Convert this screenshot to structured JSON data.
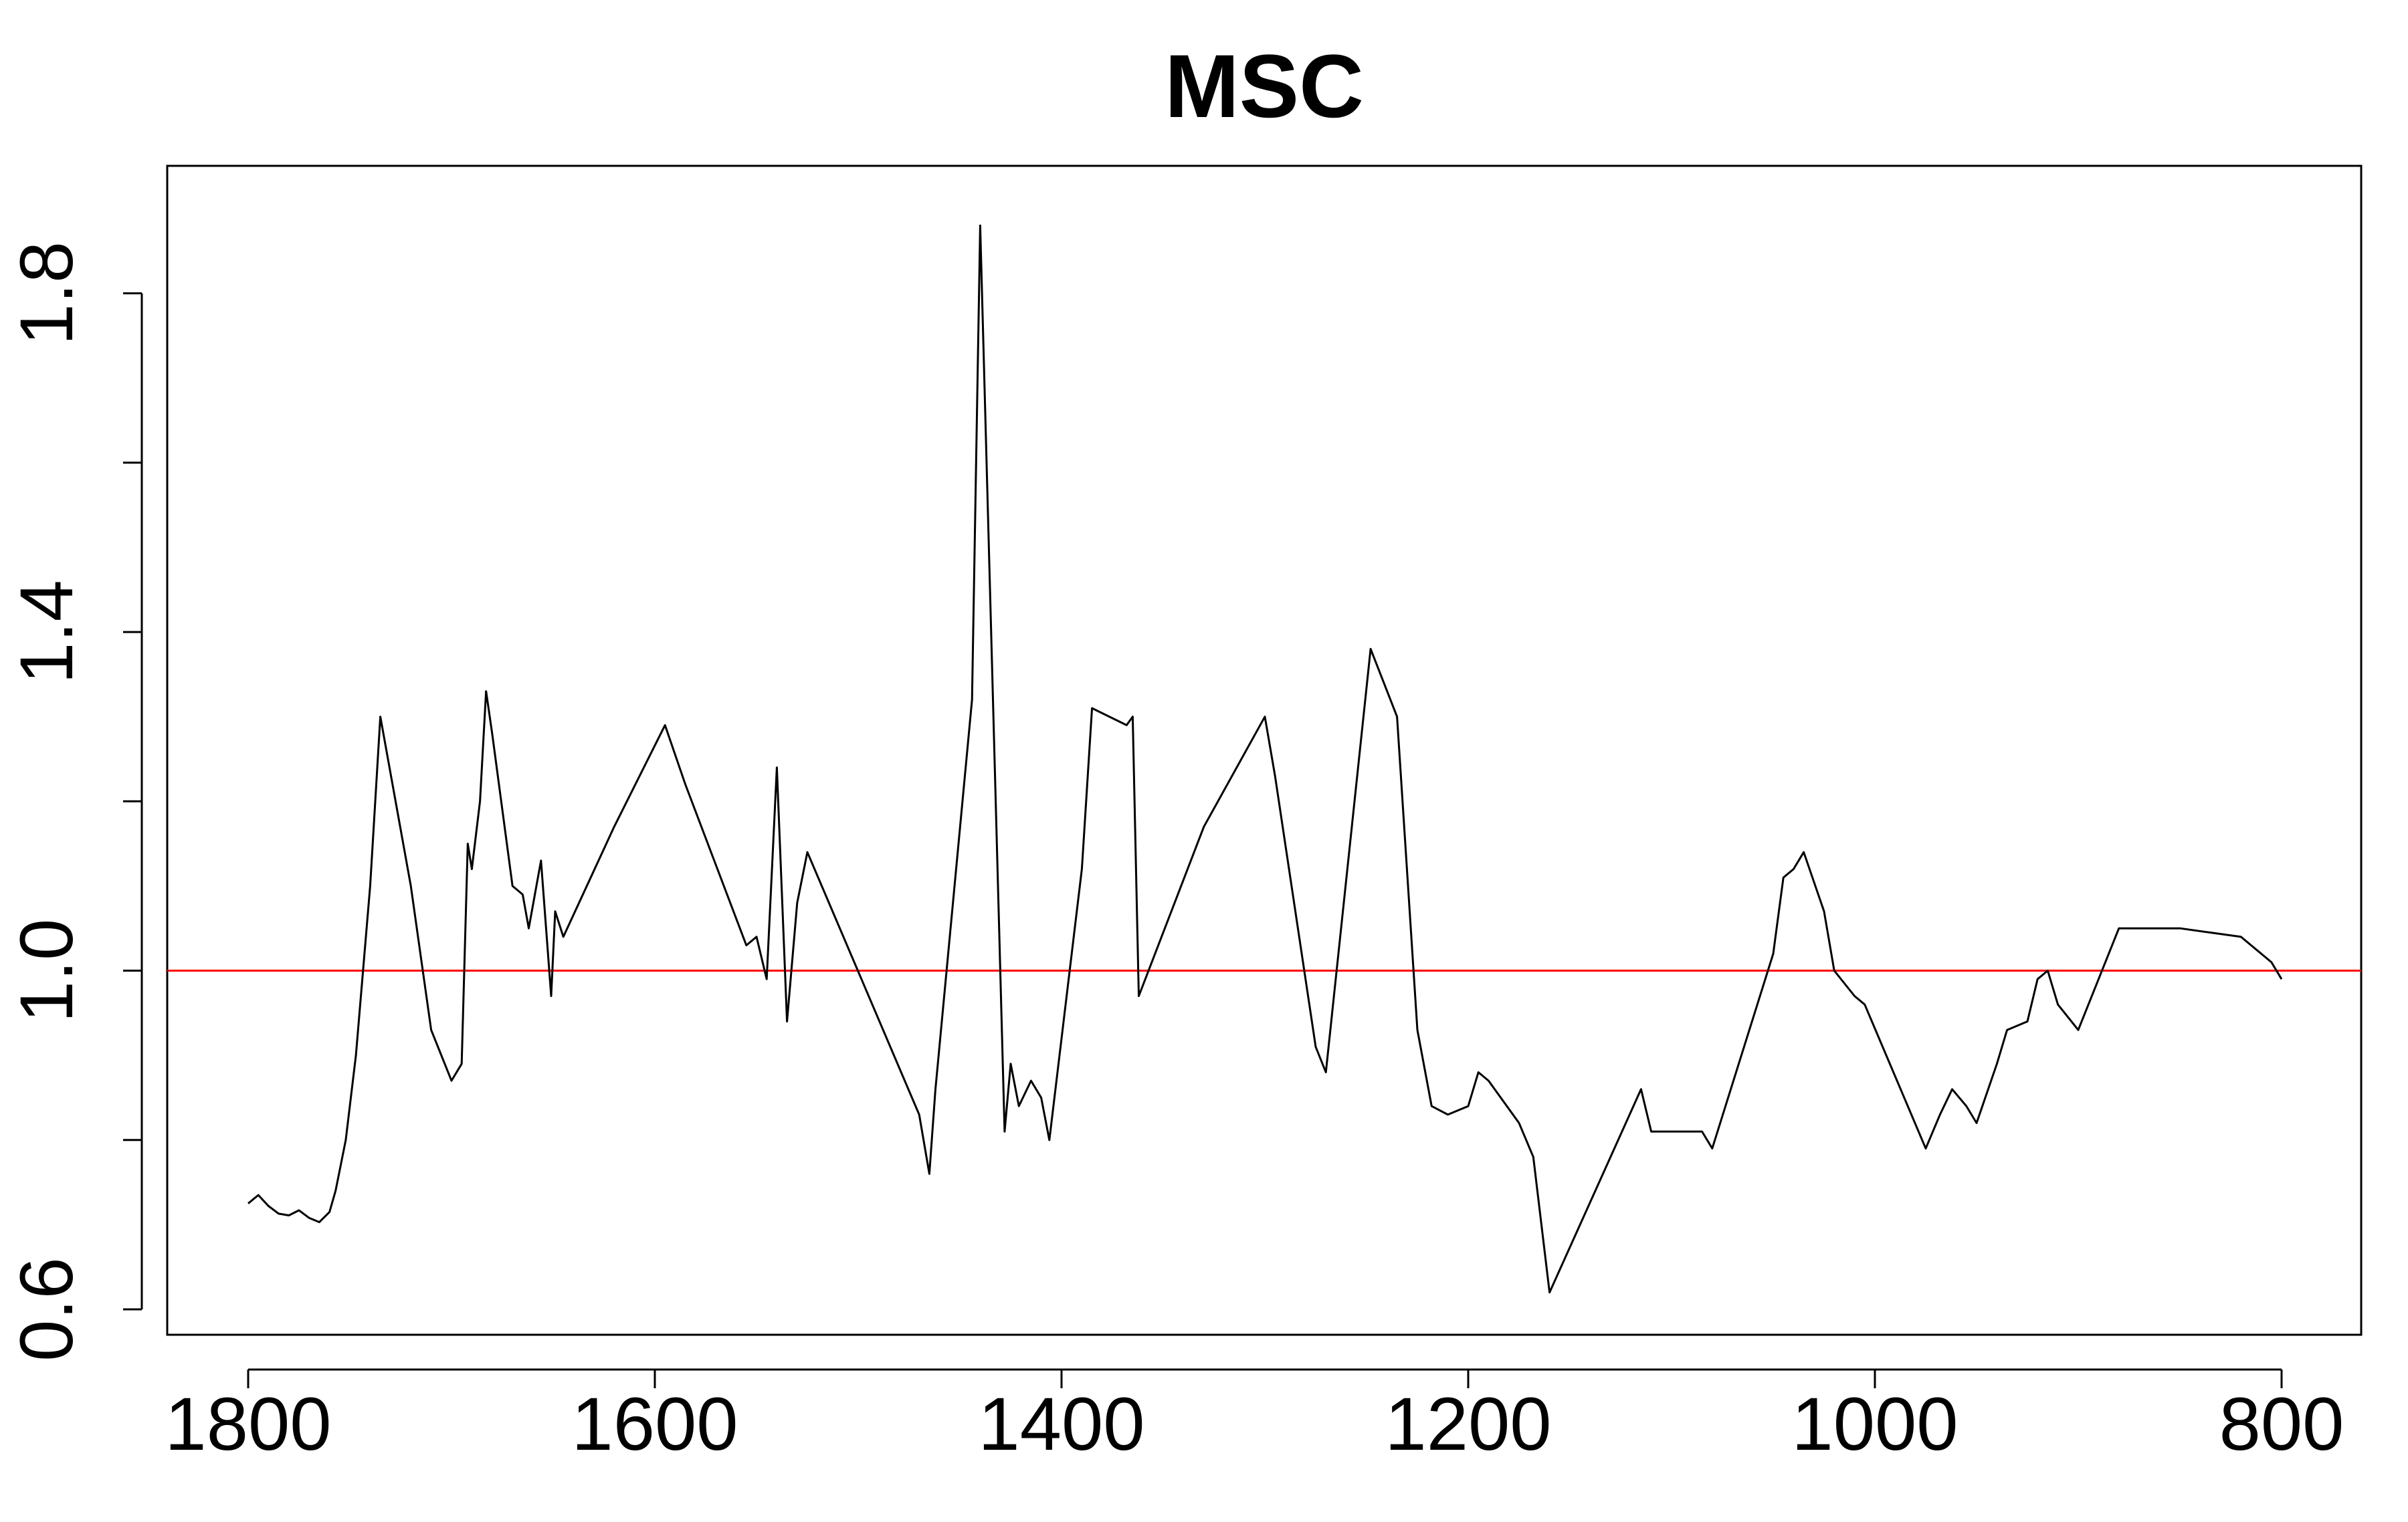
{
  "chart_data": {
    "type": "line",
    "title": "MSC",
    "xlabel": "",
    "ylabel": "",
    "xlim": [
      1800,
      800
    ],
    "ylim": [
      0.6,
      1.9
    ],
    "x_reversed": true,
    "grid": false,
    "x_ticks": [
      1800,
      1600,
      1400,
      1200,
      1000,
      800
    ],
    "x_tick_labels": [
      "1800",
      "1600",
      "1400",
      "1200",
      "1000",
      "800"
    ],
    "y_ticks": [
      0.6,
      0.8,
      1.0,
      1.2,
      1.4,
      1.6,
      1.8
    ],
    "y_tick_labels": [
      "0.6",
      "",
      "1.0",
      "",
      "1.4",
      "",
      "1.8"
    ],
    "reference_line": {
      "y": 1.0,
      "color": "#ff0000"
    },
    "series": [
      {
        "color": "#000000",
        "points": [
          [
            1800,
            0.725
          ],
          [
            1795,
            0.735
          ],
          [
            1790,
            0.722
          ],
          [
            1785,
            0.713
          ],
          [
            1780,
            0.711
          ],
          [
            1775,
            0.717
          ],
          [
            1770,
            0.708
          ],
          [
            1765,
            0.703
          ],
          [
            1760,
            0.715
          ],
          [
            1757,
            0.74
          ],
          [
            1752,
            0.8
          ],
          [
            1747,
            0.9
          ],
          [
            1740,
            1.1
          ],
          [
            1735,
            1.3
          ],
          [
            1720,
            1.1
          ],
          [
            1710,
            0.93
          ],
          [
            1700,
            0.87
          ],
          [
            1695,
            0.89
          ],
          [
            1692,
            1.15
          ],
          [
            1690,
            1.12
          ],
          [
            1686,
            1.2
          ],
          [
            1683,
            1.33
          ],
          [
            1680,
            1.28
          ],
          [
            1670,
            1.1
          ],
          [
            1665,
            1.09
          ],
          [
            1662,
            1.05
          ],
          [
            1656,
            1.13
          ],
          [
            1651,
            0.97
          ],
          [
            1649,
            1.07
          ],
          [
            1645,
            1.04
          ],
          [
            1620,
            1.17
          ],
          [
            1595,
            1.29
          ],
          [
            1585,
            1.22
          ],
          [
            1555,
            1.03
          ],
          [
            1550,
            1.04
          ],
          [
            1545,
            0.99
          ],
          [
            1540,
            1.24
          ],
          [
            1535,
            0.94
          ],
          [
            1530,
            1.08
          ],
          [
            1525,
            1.14
          ],
          [
            1470,
            0.83
          ],
          [
            1465,
            0.76
          ],
          [
            1462,
            0.86
          ],
          [
            1444,
            1.32
          ],
          [
            1440,
            1.88
          ],
          [
            1428,
            0.81
          ],
          [
            1425,
            0.89
          ],
          [
            1421,
            0.84
          ],
          [
            1415,
            0.87
          ],
          [
            1410,
            0.85
          ],
          [
            1406,
            0.8
          ],
          [
            1390,
            1.12
          ],
          [
            1385,
            1.31
          ],
          [
            1368,
            1.29
          ],
          [
            1365,
            1.3
          ],
          [
            1362,
            0.97
          ],
          [
            1330,
            1.17
          ],
          [
            1300,
            1.3
          ],
          [
            1295,
            1.23
          ],
          [
            1275,
            0.91
          ],
          [
            1270,
            0.88
          ],
          [
            1248,
            1.38
          ],
          [
            1235,
            1.3
          ],
          [
            1225,
            0.93
          ],
          [
            1218,
            0.84
          ],
          [
            1210,
            0.83
          ],
          [
            1200,
            0.84
          ],
          [
            1195,
            0.88
          ],
          [
            1190,
            0.87
          ],
          [
            1175,
            0.82
          ],
          [
            1168,
            0.78
          ],
          [
            1160,
            0.62
          ],
          [
            1115,
            0.86
          ],
          [
            1110,
            0.81
          ],
          [
            1085,
            0.81
          ],
          [
            1080,
            0.79
          ],
          [
            1050,
            1.02
          ],
          [
            1045,
            1.11
          ],
          [
            1040,
            1.12
          ],
          [
            1035,
            1.14
          ],
          [
            1025,
            1.07
          ],
          [
            1020,
            1.0
          ],
          [
            1010,
            0.97
          ],
          [
            1005,
            0.96
          ],
          [
            975,
            0.79
          ],
          [
            968,
            0.83
          ],
          [
            962,
            0.86
          ],
          [
            955,
            0.84
          ],
          [
            950,
            0.82
          ],
          [
            940,
            0.89
          ],
          [
            935,
            0.93
          ],
          [
            925,
            0.94
          ],
          [
            920,
            0.99
          ],
          [
            915,
            1.0
          ],
          [
            910,
            0.96
          ],
          [
            900,
            0.93
          ],
          [
            880,
            1.05
          ],
          [
            850,
            1.05
          ],
          [
            820,
            1.04
          ],
          [
            810,
            1.02
          ],
          [
            805,
            1.01
          ],
          [
            800,
            0.99
          ]
        ]
      }
    ]
  }
}
